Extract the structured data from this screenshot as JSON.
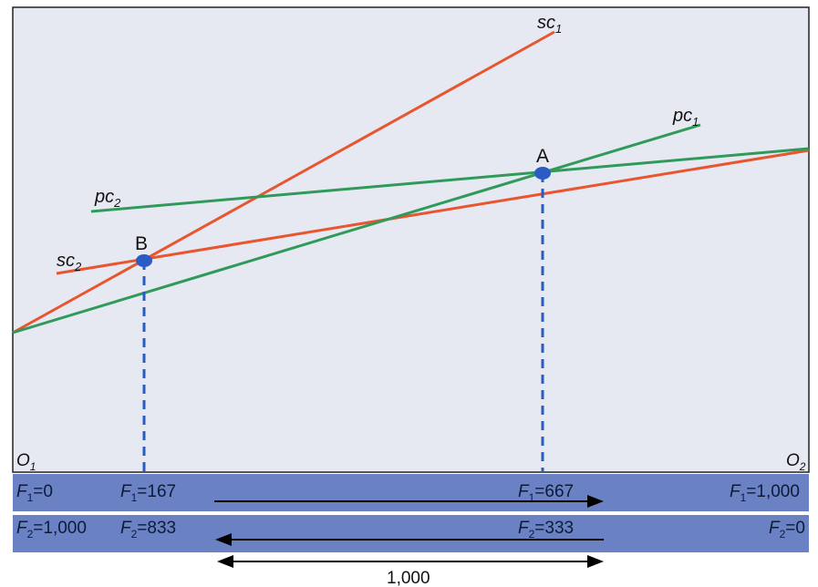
{
  "colors": {
    "plot_bg": "#e6e9f1",
    "sc_line": "#e8552f",
    "pc_line": "#2f9a5a",
    "point": "#2b5cc4",
    "dash": "#2b5cc4",
    "bar": "#6a82c4",
    "bar_band": "#ffffff"
  },
  "origins": {
    "left": "O",
    "left_sub": "1",
    "right": "O",
    "right_sub": "2"
  },
  "curves": {
    "sc1": {
      "base": "sc",
      "sub": "1"
    },
    "sc2": {
      "base": "sc",
      "sub": "2"
    },
    "pc1": {
      "base": "pc",
      "sub": "1"
    },
    "pc2": {
      "base": "pc",
      "sub": "2"
    }
  },
  "points": {
    "A": {
      "label": "A"
    },
    "B": {
      "label": "B"
    }
  },
  "axis_labels": {
    "f1_row": [
      {
        "var": "F",
        "sub": "1",
        "value": "=0"
      },
      {
        "var": "F",
        "sub": "1",
        "value": "=167"
      },
      {
        "var": "F",
        "sub": "1",
        "value": "=667"
      },
      {
        "var": "F",
        "sub": "1",
        "value": "=1,000"
      }
    ],
    "f2_row": [
      {
        "var": "F",
        "sub": "2",
        "value": "=1,000"
      },
      {
        "var": "F",
        "sub": "2",
        "value": "=833"
      },
      {
        "var": "F",
        "sub": "2",
        "value": "=333"
      },
      {
        "var": "F",
        "sub": "2",
        "value": "=0"
      }
    ]
  },
  "total_label": "1,000"
}
